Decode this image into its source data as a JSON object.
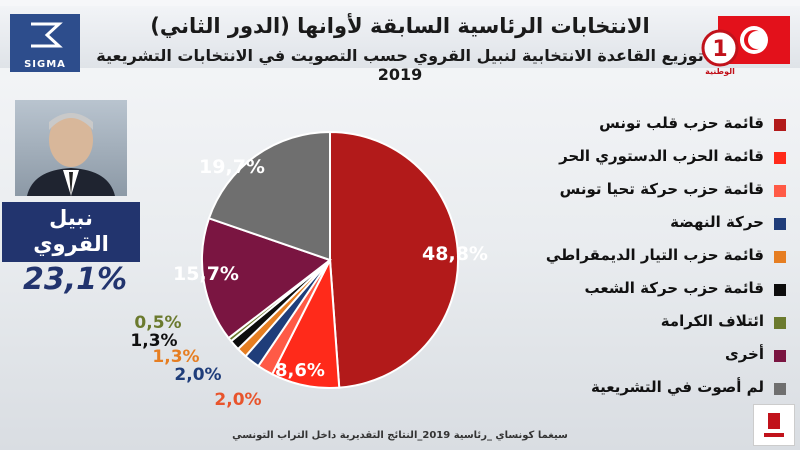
{
  "header": {
    "title": "الانتخابات الرئاسية السابقة لأوانها (الدور الثاني)",
    "subtitle": "توزيع القاعدة الانتخابية لنبيل القروي حسب التصويت في الانتخابات التشريعية 2019",
    "brand": "SIGMA",
    "channel_number": "1",
    "channel_name": "الوطنية"
  },
  "candidate": {
    "name_line1": "نبيل",
    "name_line2": "القروي",
    "percentage": "23,1%"
  },
  "footer": {
    "source": "سيغما كونساي _رئاسية 2019_النتائج التقديرية داخل التراب التونسي"
  },
  "chart_data": {
    "type": "pie",
    "series": [
      {
        "name": "قائمة حزب قلب تونس",
        "value": 48.8,
        "label": "48,8%",
        "color": "#b21a1a"
      },
      {
        "name": "قائمة الحزب الدستوري الحر",
        "value": 8.6,
        "label": "8,6%",
        "color": "#ff2a1a"
      },
      {
        "name": "قائمة حزب حركة تحيا تونس",
        "value": 2.0,
        "label": "2,0%",
        "color": "#ff5a46"
      },
      {
        "name": "حركة النهضة",
        "value": 2.0,
        "label": "2,0%",
        "color": "#1f3d7a"
      },
      {
        "name": "قائمة حزب التيار الديمقراطي",
        "value": 1.3,
        "label": "1,3%",
        "color": "#e67e22"
      },
      {
        "name": "قائمة حزب حركة الشعب",
        "value": 1.3,
        "label": "1,3%",
        "color": "#0d0d0d"
      },
      {
        "name": "ائتلاف الكرامة",
        "value": 0.5,
        "label": "0,5%",
        "color": "#6b7a2e"
      },
      {
        "name": "أخرى",
        "value": 15.7,
        "label": "15,7%",
        "color": "#7a1541"
      },
      {
        "name": "لم أصوت في التشريعية",
        "value": 19.7,
        "label": "19,7%",
        "color": "#6f6f6f"
      }
    ]
  }
}
